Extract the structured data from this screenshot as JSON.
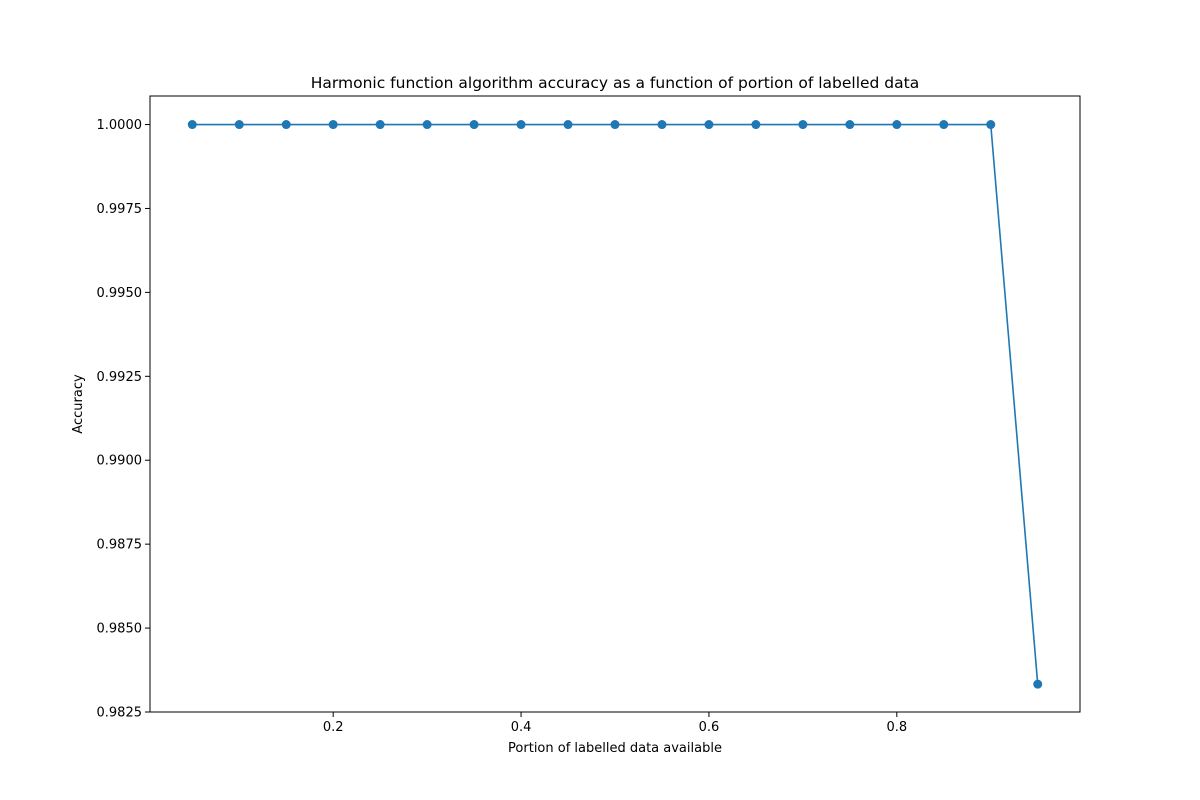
{
  "chart_data": {
    "type": "line",
    "title": "Harmonic function algorithm accuracy as a function of portion of labelled data",
    "xlabel": "Portion of labelled data available",
    "ylabel": "Accuracy",
    "xlim": [
      0.005,
      0.995
    ],
    "ylim": [
      0.9825,
      1.00085
    ],
    "x_ticks": [
      0.2,
      0.4,
      0.6,
      0.8
    ],
    "x_tick_labels": [
      "0.2",
      "0.4",
      "0.6",
      "0.8"
    ],
    "y_ticks": [
      0.9825,
      0.985,
      0.9875,
      0.99,
      0.9925,
      0.995,
      0.9975,
      1.0
    ],
    "y_tick_labels": [
      "0.9825",
      "0.9850",
      "0.9875",
      "0.9900",
      "0.9925",
      "0.9950",
      "0.9975",
      "1.0000"
    ],
    "grid": false,
    "series": [
      {
        "color": "#1f77b4",
        "marker": "circle",
        "x": [
          0.05,
          0.1,
          0.15,
          0.2,
          0.25,
          0.3,
          0.35,
          0.4,
          0.45,
          0.5,
          0.55,
          0.6,
          0.65,
          0.7,
          0.75,
          0.8,
          0.85,
          0.9,
          0.95
        ],
        "y": [
          1.0,
          1.0,
          1.0,
          1.0,
          1.0,
          1.0,
          1.0,
          1.0,
          1.0,
          1.0,
          1.0,
          1.0,
          1.0,
          1.0,
          1.0,
          1.0,
          1.0,
          1.0,
          0.98333
        ]
      }
    ]
  }
}
